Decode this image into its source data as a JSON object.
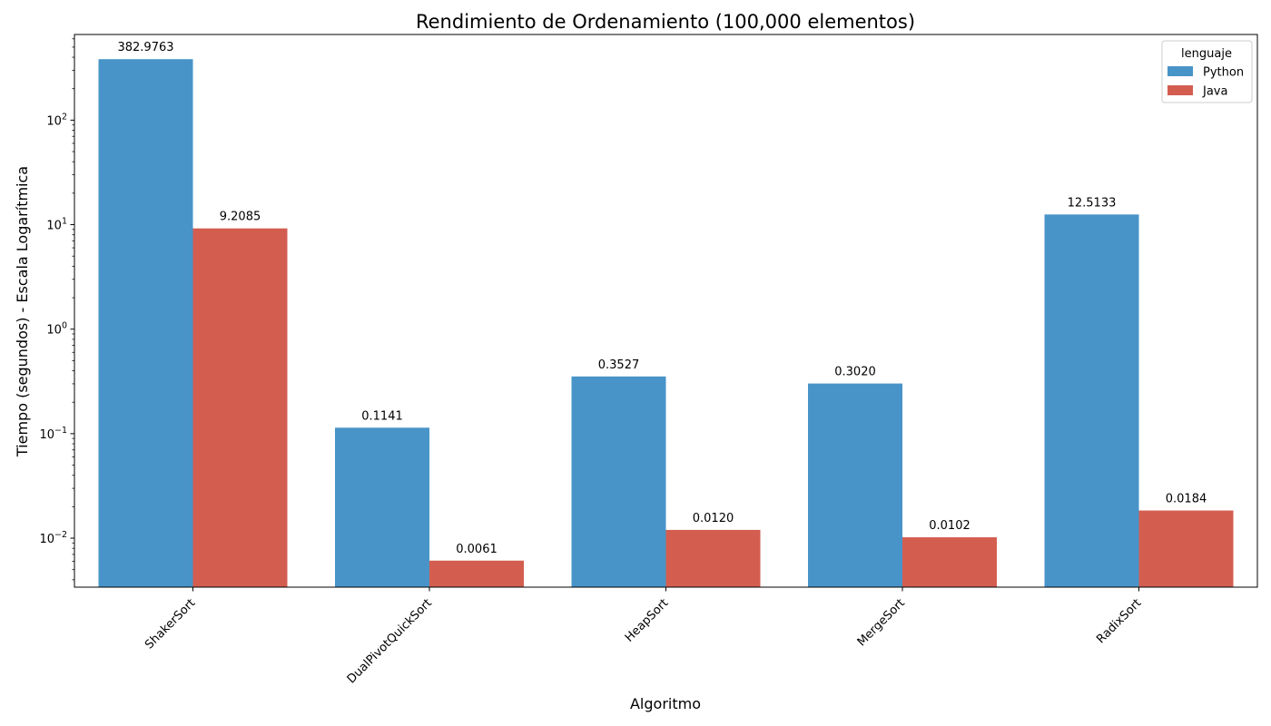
{
  "chart_data": {
    "type": "bar",
    "title": "Rendimiento de Ordenamiento (100,000 elementos)",
    "xlabel": "Algoritmo",
    "ylabel": "Tiempo (segundos) - Escala Logarítmica",
    "yscale": "log",
    "ylim": [
      0.0034,
      660
    ],
    "grid": false,
    "legend": {
      "title": "lenguaje",
      "placement": "top-right"
    },
    "categories": [
      "ShakerSort",
      "DualPivotQuickSort",
      "HeapSort",
      "MergeSort",
      "RadixSort"
    ],
    "series": [
      {
        "name": "Python",
        "color": "#4894c8",
        "values": [
          382.9763,
          0.1141,
          0.3527,
          0.302,
          12.5133
        ],
        "labels": [
          "382.9763",
          "0.1141",
          "0.3527",
          "0.3020",
          "12.5133"
        ]
      },
      {
        "name": "Java",
        "color": "#d35e50",
        "values": [
          9.2085,
          0.0061,
          0.012,
          0.0102,
          0.0184
        ],
        "labels": [
          "9.2085",
          "0.0061",
          "0.0120",
          "0.0102",
          "0.0184"
        ]
      }
    ],
    "yticks": [
      {
        "value": 0.01,
        "mant": "10",
        "exp": "−2"
      },
      {
        "value": 0.1,
        "mant": "10",
        "exp": "−1"
      },
      {
        "value": 1,
        "mant": "10",
        "exp": "0"
      },
      {
        "value": 10,
        "mant": "10",
        "exp": "1"
      },
      {
        "value": 100,
        "mant": "10",
        "exp": "2"
      }
    ]
  }
}
